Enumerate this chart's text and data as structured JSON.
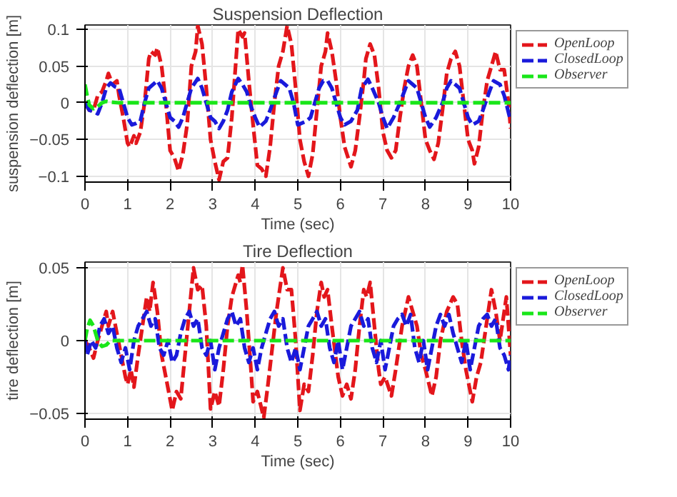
{
  "chart_data": [
    {
      "type": "line",
      "title": "Suspension Deflection",
      "xlabel": "Time (sec)",
      "ylabel": "suspension deflection [m]",
      "xlim": [
        0,
        10
      ],
      "ylim": [
        -0.108,
        0.106
      ],
      "xticks": [
        0,
        1,
        2,
        3,
        4,
        5,
        6,
        7,
        8,
        9,
        10
      ],
      "yticks": [
        -0.1,
        -0.05,
        0,
        0.05,
        0.1
      ],
      "grid": true,
      "legend": "right",
      "line_style": "dashed",
      "series": [
        {
          "name": "OpenLoop",
          "color": "#e3161b",
          "x": [
            0,
            0.1,
            0.2,
            0.3,
            0.4,
            0.5,
            0.55,
            0.65,
            0.75,
            0.8,
            0.9,
            1.0,
            1.05,
            1.15,
            1.2,
            1.3,
            1.4,
            1.5,
            1.55,
            1.65,
            1.7,
            1.8,
            1.9,
            2.0,
            2.1,
            2.2,
            2.3,
            2.4,
            2.5,
            2.6,
            2.65,
            2.75,
            2.85,
            2.95,
            3.05,
            3.15,
            3.25,
            3.35,
            3.45,
            3.55,
            3.6,
            3.7,
            3.75,
            3.85,
            3.95,
            4.05,
            4.15,
            4.25,
            4.35,
            4.45,
            4.55,
            4.65,
            4.75,
            4.85,
            4.95,
            5.05,
            5.15,
            5.25,
            5.35,
            5.45,
            5.55,
            5.65,
            5.7,
            5.8,
            5.9,
            6.0,
            6.1,
            6.25,
            6.35,
            6.45,
            6.55,
            6.6,
            6.7,
            6.8,
            6.9,
            7.0,
            7.1,
            7.2,
            7.3,
            7.4,
            7.5,
            7.6,
            7.7,
            7.8,
            7.9,
            8.0,
            8.1,
            8.2,
            8.3,
            8.4,
            8.5,
            8.6,
            8.7,
            8.8,
            8.9,
            9.0,
            9.1,
            9.15,
            9.25,
            9.35,
            9.45,
            9.55,
            9.65,
            9.75,
            9.85,
            9.95,
            10
          ],
          "values": [
            0,
            -0.01,
            -0.01,
            0.01,
            0.015,
            0.03,
            0.04,
            0.025,
            0.03,
            0.01,
            -0.02,
            -0.055,
            -0.06,
            -0.045,
            -0.055,
            -0.04,
            0.0,
            0.06,
            0.07,
            0.065,
            0.075,
            0.05,
            0.0,
            -0.065,
            -0.075,
            -0.093,
            -0.07,
            -0.03,
            0.05,
            0.07,
            0.105,
            0.08,
            0.02,
            -0.05,
            -0.08,
            -0.105,
            -0.08,
            -0.075,
            -0.02,
            0.06,
            0.1,
            0.09,
            0.095,
            0.03,
            -0.03,
            -0.085,
            -0.09,
            -0.1,
            -0.06,
            0.0,
            0.05,
            0.07,
            0.105,
            0.08,
            0.02,
            -0.05,
            -0.08,
            -0.1,
            -0.07,
            -0.01,
            0.05,
            0.07,
            0.095,
            0.07,
            0.03,
            -0.02,
            -0.06,
            -0.087,
            -0.065,
            -0.02,
            0.03,
            0.06,
            0.08,
            0.065,
            0.02,
            -0.04,
            -0.065,
            -0.075,
            -0.065,
            -0.02,
            0.02,
            0.05,
            0.065,
            0.05,
            0.0,
            -0.05,
            -0.065,
            -0.077,
            -0.055,
            -0.01,
            0.04,
            0.06,
            0.07,
            0.05,
            0.0,
            -0.05,
            -0.065,
            -0.083,
            -0.06,
            -0.01,
            0.03,
            0.05,
            0.07,
            0.045,
            0.045,
            0.0,
            -0.035
          ]
        },
        {
          "name": "ClosedLoop",
          "color": "#1a1adb",
          "x": [
            0,
            0.1,
            0.2,
            0.3,
            0.4,
            0.5,
            0.6,
            0.7,
            0.8,
            0.9,
            1.0,
            1.1,
            1.2,
            1.3,
            1.4,
            1.5,
            1.6,
            1.7,
            1.8,
            1.9,
            2.0,
            2.1,
            2.2,
            2.3,
            2.4,
            2.5,
            2.65,
            2.75,
            2.85,
            2.95,
            3.05,
            3.15,
            3.25,
            3.35,
            3.45,
            3.6,
            3.7,
            3.8,
            3.9,
            4.0,
            4.1,
            4.25,
            4.35,
            4.5,
            4.6,
            4.7,
            4.8,
            4.9,
            5.0,
            5.2,
            5.3,
            5.4,
            5.5,
            5.6,
            5.7,
            5.8,
            5.9,
            6.0,
            6.1,
            6.25,
            6.4,
            6.5,
            6.65,
            6.75,
            6.9,
            7.0,
            7.1,
            7.25,
            7.4,
            7.5,
            7.6,
            7.7,
            7.8,
            7.9,
            8.0,
            8.1,
            8.25,
            8.4,
            8.5,
            8.6,
            8.7,
            8.8,
            8.9,
            9.0,
            9.1,
            9.25,
            9.35,
            9.5,
            9.6,
            9.75,
            9.85,
            10
          ],
          "values": [
            0,
            -0.01,
            -0.012,
            -0.015,
            0.0,
            0.02,
            0.027,
            0.022,
            0.02,
            0.0,
            -0.02,
            -0.03,
            -0.028,
            -0.025,
            0.0,
            0.02,
            0.025,
            0.03,
            0.02,
            0.0,
            -0.02,
            -0.025,
            -0.033,
            -0.02,
            0.0,
            0.02,
            0.033,
            0.02,
            0.0,
            -0.02,
            -0.025,
            -0.035,
            -0.025,
            -0.01,
            0.015,
            0.033,
            0.025,
            0.015,
            -0.005,
            -0.02,
            -0.033,
            -0.025,
            -0.01,
            0.015,
            0.03,
            0.025,
            0.02,
            0.0,
            -0.03,
            -0.025,
            -0.02,
            0.0,
            0.02,
            0.03,
            0.03,
            0.02,
            0.0,
            -0.02,
            -0.03,
            -0.025,
            -0.01,
            0.02,
            0.032,
            0.02,
            0.0,
            -0.02,
            -0.035,
            -0.02,
            0.0,
            0.015,
            0.03,
            0.025,
            0.02,
            0.0,
            -0.02,
            -0.033,
            -0.02,
            0.0,
            0.02,
            0.03,
            0.025,
            0.02,
            0.0,
            -0.02,
            -0.03,
            -0.025,
            -0.01,
            0.015,
            0.03,
            0.025,
            0.01,
            -0.025
          ]
        },
        {
          "name": "Observer",
          "color": "#19e619",
          "x": [
            0,
            0.05,
            0.1,
            0.2,
            0.3,
            0.4,
            0.5,
            0.6,
            0.8,
            10
          ],
          "values": [
            0.025,
            0.01,
            -0.003,
            -0.008,
            -0.005,
            0.0,
            0.002,
            0.001,
            0.0,
            0.0
          ]
        }
      ]
    },
    {
      "type": "line",
      "title": "Tire Deflection",
      "xlabel": "Time (sec)",
      "ylabel": "tire deflection [m]",
      "xlim": [
        0,
        10
      ],
      "ylim": [
        -0.054,
        0.054
      ],
      "xticks": [
        0,
        1,
        2,
        3,
        4,
        5,
        6,
        7,
        8,
        9,
        10
      ],
      "yticks": [
        -0.05,
        0,
        0.05
      ],
      "grid": true,
      "legend": "right",
      "line_style": "dashed",
      "series": [
        {
          "name": "OpenLoop",
          "color": "#e3161b",
          "x": [
            0,
            0.1,
            0.2,
            0.3,
            0.4,
            0.5,
            0.55,
            0.65,
            0.75,
            0.85,
            0.95,
            1.0,
            1.08,
            1.15,
            1.25,
            1.35,
            1.45,
            1.52,
            1.6,
            1.7,
            1.8,
            1.9,
            2.05,
            2.15,
            2.25,
            2.35,
            2.45,
            2.55,
            2.65,
            2.75,
            2.85,
            2.95,
            3.05,
            3.15,
            3.25,
            3.35,
            3.45,
            3.6,
            3.65,
            3.7,
            3.8,
            3.9,
            3.95,
            4.05,
            4.2,
            4.3,
            4.4,
            4.5,
            4.65,
            4.75,
            4.85,
            4.95,
            5.05,
            5.15,
            5.25,
            5.35,
            5.45,
            5.55,
            5.62,
            5.7,
            5.8,
            5.95,
            6.05,
            6.15,
            6.25,
            6.35,
            6.45,
            6.55,
            6.62,
            6.7,
            6.8,
            6.9,
            6.95,
            7.05,
            7.2,
            7.3,
            7.45,
            7.6,
            7.7,
            7.8,
            7.9,
            8.0,
            8.15,
            8.25,
            8.35,
            8.5,
            8.65,
            8.75,
            8.85,
            8.95,
            9.1,
            9.2,
            9.3,
            9.45,
            9.55,
            9.65,
            9.75,
            9.85,
            9.9,
            9.95,
            10
          ],
          "values": [
            0,
            -0.005,
            -0.012,
            0.0,
            0.01,
            0.02,
            0.01,
            0.02,
            0.005,
            -0.01,
            -0.025,
            -0.03,
            -0.02,
            -0.032,
            -0.01,
            0.01,
            0.03,
            0.02,
            0.04,
            0.02,
            -0.01,
            -0.025,
            -0.048,
            -0.035,
            -0.04,
            -0.01,
            0.02,
            0.05,
            0.035,
            0.038,
            0.01,
            -0.047,
            -0.035,
            -0.045,
            -0.02,
            0.01,
            0.03,
            0.045,
            0.04,
            0.052,
            0.02,
            -0.02,
            -0.042,
            -0.035,
            -0.053,
            -0.03,
            -0.005,
            0.02,
            0.05,
            0.035,
            0.035,
            0.0,
            -0.048,
            -0.03,
            -0.035,
            -0.01,
            0.02,
            0.04,
            0.03,
            0.035,
            0.01,
            -0.025,
            -0.038,
            -0.03,
            -0.04,
            -0.02,
            0.01,
            0.035,
            0.03,
            0.04,
            0.01,
            -0.02,
            -0.03,
            -0.025,
            -0.038,
            -0.02,
            0.01,
            0.03,
            0.02,
            0.01,
            -0.01,
            -0.02,
            -0.038,
            -0.025,
            0.0,
            0.02,
            0.03,
            0.025,
            0.0,
            -0.02,
            -0.042,
            -0.025,
            -0.015,
            0.015,
            0.035,
            0.02,
            0.0,
            0.02,
            0.03,
            0.01,
            -0.01
          ]
        },
        {
          "name": "ClosedLoop",
          "color": "#1a1adb",
          "x": [
            0,
            0.05,
            0.15,
            0.25,
            0.35,
            0.45,
            0.55,
            0.65,
            0.75,
            0.85,
            0.95,
            1.05,
            1.15,
            1.25,
            1.35,
            1.45,
            1.55,
            1.65,
            1.75,
            1.85,
            1.95,
            2.05,
            2.15,
            2.25,
            2.35,
            2.45,
            2.55,
            2.65,
            2.75,
            2.85,
            2.95,
            3.05,
            3.15,
            3.25,
            3.35,
            3.45,
            3.55,
            3.65,
            3.75,
            3.85,
            3.95,
            4.05,
            4.15,
            4.25,
            4.35,
            4.45,
            4.55,
            4.65,
            4.75,
            4.85,
            4.95,
            5.05,
            5.15,
            5.25,
            5.35,
            5.45,
            5.55,
            5.65,
            5.75,
            5.85,
            5.95,
            6.05,
            6.15,
            6.25,
            6.35,
            6.45,
            6.55,
            6.65,
            6.75,
            6.85,
            6.95,
            7.05,
            7.15,
            7.25,
            7.35,
            7.45,
            7.55,
            7.65,
            7.75,
            7.85,
            7.95,
            8.05,
            8.15,
            8.25,
            8.35,
            8.45,
            8.55,
            8.65,
            8.75,
            8.85,
            8.95,
            9.05,
            9.15,
            9.25,
            9.35,
            9.45,
            9.55,
            9.65,
            9.75,
            9.85,
            9.95,
            10
          ],
          "values": [
            0,
            -0.01,
            0.0,
            -0.005,
            0.01,
            0.015,
            0.005,
            0.01,
            -0.005,
            -0.015,
            -0.005,
            -0.02,
            0.0,
            0.01,
            0.015,
            0.02,
            0.01,
            0.015,
            -0.005,
            -0.01,
            0.0,
            -0.015,
            -0.01,
            0.005,
            0.015,
            0.02,
            0.01,
            0.015,
            -0.005,
            -0.01,
            0.0,
            -0.02,
            -0.005,
            0.005,
            0.015,
            0.02,
            0.01,
            0.015,
            -0.005,
            -0.015,
            -0.005,
            -0.02,
            -0.005,
            0.005,
            0.015,
            0.02,
            0.01,
            0.015,
            -0.005,
            -0.015,
            -0.005,
            -0.02,
            -0.005,
            0.01,
            0.015,
            0.02,
            0.01,
            0.015,
            -0.005,
            -0.015,
            0.0,
            -0.02,
            -0.005,
            0.01,
            0.015,
            0.02,
            0.01,
            0.015,
            -0.005,
            -0.015,
            0.0,
            -0.02,
            -0.005,
            0.01,
            0.015,
            0.018,
            0.01,
            0.018,
            -0.005,
            -0.015,
            0.0,
            -0.02,
            -0.005,
            0.01,
            0.018,
            0.01,
            0.018,
            0.005,
            -0.005,
            -0.015,
            0.0,
            -0.02,
            -0.005,
            0.01,
            0.015,
            0.018,
            0.01,
            0.015,
            -0.005,
            -0.01,
            -0.02,
            -0.01
          ]
        },
        {
          "name": "Observer",
          "color": "#19e619",
          "x": [
            0,
            0.05,
            0.12,
            0.2,
            0.3,
            0.4,
            0.5,
            0.6,
            10
          ],
          "values": [
            0,
            0.008,
            0.014,
            0.01,
            0.0,
            -0.004,
            -0.003,
            0.0,
            0.0
          ]
        }
      ]
    }
  ]
}
